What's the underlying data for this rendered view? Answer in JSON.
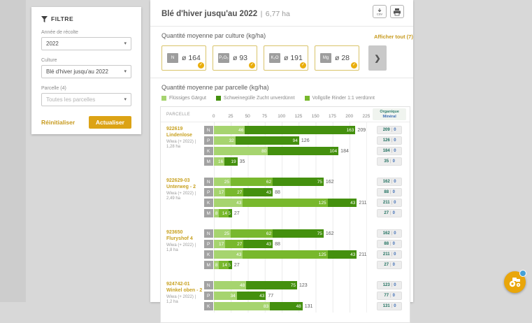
{
  "sidebar": {
    "title": "FILTRE",
    "harvest_year_label": "Année de récolte",
    "harvest_year_value": "2022",
    "culture_label": "Culture",
    "culture_value": "Blé d'hiver jusqu'au 2022",
    "parcel_label": "Parcelle (4)",
    "parcel_placeholder": "Toutes les parcelles",
    "reset_label": "Réinitialiser",
    "apply_label": "Actualiser"
  },
  "header": {
    "title": "Blé d'hiver jusqu'au 2022",
    "separator": "|",
    "area": "6,77 ha",
    "csv_label": "CSV"
  },
  "culture_section": {
    "title": "Quantité moyenne par culture (kg/ha)",
    "show_all_label": "Afficher tout (7)",
    "cards": [
      {
        "nutrient": "N",
        "value": "ø 164",
        "selected": true
      },
      {
        "nutrient": "P₂O₅",
        "value": "ø 93",
        "selected": true
      },
      {
        "nutrient": "K₂O",
        "value": "ø 191",
        "selected": true
      },
      {
        "nutrient": "Mg",
        "value": "ø 28",
        "selected": true
      }
    ]
  },
  "parcel_section": {
    "title": "Quantité moyenne par parcelle (kg/ha)",
    "legend": [
      {
        "label": "Flüssiges Gärgut",
        "color": "#a6d46f"
      },
      {
        "label": "Schweinegülle Zucht unverdünnt",
        "color": "#44900e"
      },
      {
        "label": "Vollgülle Rinder 1:1 verdünnt",
        "color": "#78b82d"
      }
    ]
  },
  "chart_data": {
    "type": "bar",
    "orientation": "horizontal_stacked",
    "unit": "kg/ha",
    "axis": {
      "min": 0,
      "max": 225,
      "step": 25,
      "ticks": [
        0,
        25,
        50,
        75,
        100,
        125,
        150,
        175,
        200,
        225
      ]
    },
    "columns": {
      "parcel": "PARCELLE",
      "right": [
        "Organique",
        "Minéral"
      ]
    },
    "colors": {
      "gaergut": "#a6d46f",
      "schweineguelle": "#44900e",
      "vollguelle": "#78b82d"
    },
    "parcels": [
      {
        "id": "922619",
        "name": "Lindenlose",
        "meta": "Wiwa (+ 2022) | 1,28 ha",
        "rows": [
          {
            "nutrient": "N",
            "segments": [
              {
                "source": "gaergut",
                "value": 46
              },
              {
                "source": "schweineguelle",
                "value": 163
              }
            ],
            "total": 209,
            "organic": 209,
            "mineral": 0
          },
          {
            "nutrient": "P",
            "segments": [
              {
                "source": "gaergut",
                "value": 32
              },
              {
                "source": "schweineguelle",
                "value": 94
              }
            ],
            "total": 126,
            "organic": 126,
            "mineral": 0
          },
          {
            "nutrient": "K",
            "segments": [
              {
                "source": "gaergut",
                "value": 80
              },
              {
                "source": "schweineguelle",
                "value": 104
              }
            ],
            "total": 184,
            "organic": 184,
            "mineral": 0
          },
          {
            "nutrient": "M",
            "segments": [
              {
                "source": "gaergut",
                "value": 16
              },
              {
                "source": "schweineguelle",
                "value": 19
              }
            ],
            "total": 35,
            "organic": 35,
            "mineral": 0
          }
        ]
      },
      {
        "id": "922629-03",
        "name": "Unterweg - 2",
        "meta": "Wiwa (+ 2022) | 2,49 ha",
        "rows": [
          {
            "nutrient": "N",
            "segments": [
              {
                "source": "gaergut",
                "value": 25
              },
              {
                "source": "vollguelle",
                "value": 62
              },
              {
                "source": "schweineguelle",
                "value": 75
              }
            ],
            "total": 162,
            "organic": 162,
            "mineral": 0
          },
          {
            "nutrient": "P",
            "segments": [
              {
                "source": "gaergut",
                "value": 17
              },
              {
                "source": "vollguelle",
                "value": 27
              },
              {
                "source": "schweineguelle",
                "value": 43
              }
            ],
            "total": 88,
            "organic": 88,
            "mineral": 0
          },
          {
            "nutrient": "K",
            "segments": [
              {
                "source": "gaergut",
                "value": 43
              },
              {
                "source": "vollguelle",
                "value": 125
              },
              {
                "source": "schweineguelle",
                "value": 43
              }
            ],
            "total": 211,
            "organic": 211,
            "mineral": 0
          },
          {
            "nutrient": "M",
            "segments": [
              {
                "source": "gaergut",
                "value": 8
              },
              {
                "source": "vollguelle",
                "value": 14
              },
              {
                "source": "schweineguelle",
                "value": 5
              }
            ],
            "total": 27,
            "organic": 27,
            "mineral": 0
          }
        ]
      },
      {
        "id": "923650",
        "name": "Fluryshof 4",
        "meta": "Wiwa (+ 2022) | 1,8 ha",
        "rows": [
          {
            "nutrient": "N",
            "segments": [
              {
                "source": "gaergut",
                "value": 25
              },
              {
                "source": "vollguelle",
                "value": 62
              },
              {
                "source": "schweineguelle",
                "value": 75
              }
            ],
            "total": 162,
            "organic": 162,
            "mineral": 0
          },
          {
            "nutrient": "P",
            "segments": [
              {
                "source": "gaergut",
                "value": 17
              },
              {
                "source": "vollguelle",
                "value": 27
              },
              {
                "source": "schweineguelle",
                "value": 43
              }
            ],
            "total": 88,
            "organic": 88,
            "mineral": 0
          },
          {
            "nutrient": "K",
            "segments": [
              {
                "source": "gaergut",
                "value": 43
              },
              {
                "source": "vollguelle",
                "value": 125
              },
              {
                "source": "schweineguelle",
                "value": 43
              }
            ],
            "total": 211,
            "organic": 211,
            "mineral": 0
          },
          {
            "nutrient": "M",
            "segments": [
              {
                "source": "gaergut",
                "value": 8
              },
              {
                "source": "vollguelle",
                "value": 14
              },
              {
                "source": "schweineguelle",
                "value": 5
              }
            ],
            "total": 27,
            "organic": 27,
            "mineral": 0
          }
        ]
      },
      {
        "id": "924742-01",
        "name": "Winkel oben - 2",
        "meta": "Wiwa (+ 2022) | 1,2 ha",
        "rows": [
          {
            "nutrient": "N",
            "segments": [
              {
                "source": "gaergut",
                "value": 48
              },
              {
                "source": "schweineguelle",
                "value": 75
              }
            ],
            "total": 123,
            "organic": 123,
            "mineral": 0
          },
          {
            "nutrient": "P",
            "segments": [
              {
                "source": "gaergut",
                "value": 34
              },
              {
                "source": "schweineguelle",
                "value": 43
              }
            ],
            "total": 77,
            "organic": 77,
            "mineral": 0
          },
          {
            "nutrient": "K",
            "segments": [
              {
                "source": "gaergut",
                "value": 83
              },
              {
                "source": "schweineguelle",
                "value": 48
              }
            ],
            "total": 131,
            "organic": 131,
            "mineral": 0
          }
        ]
      }
    ]
  },
  "colors": {
    "accent_gold": "#dca315",
    "link_gold": "#c79a1e",
    "organic_teal": "#2e7d6e",
    "mineral_blue": "#3a6cb3"
  }
}
